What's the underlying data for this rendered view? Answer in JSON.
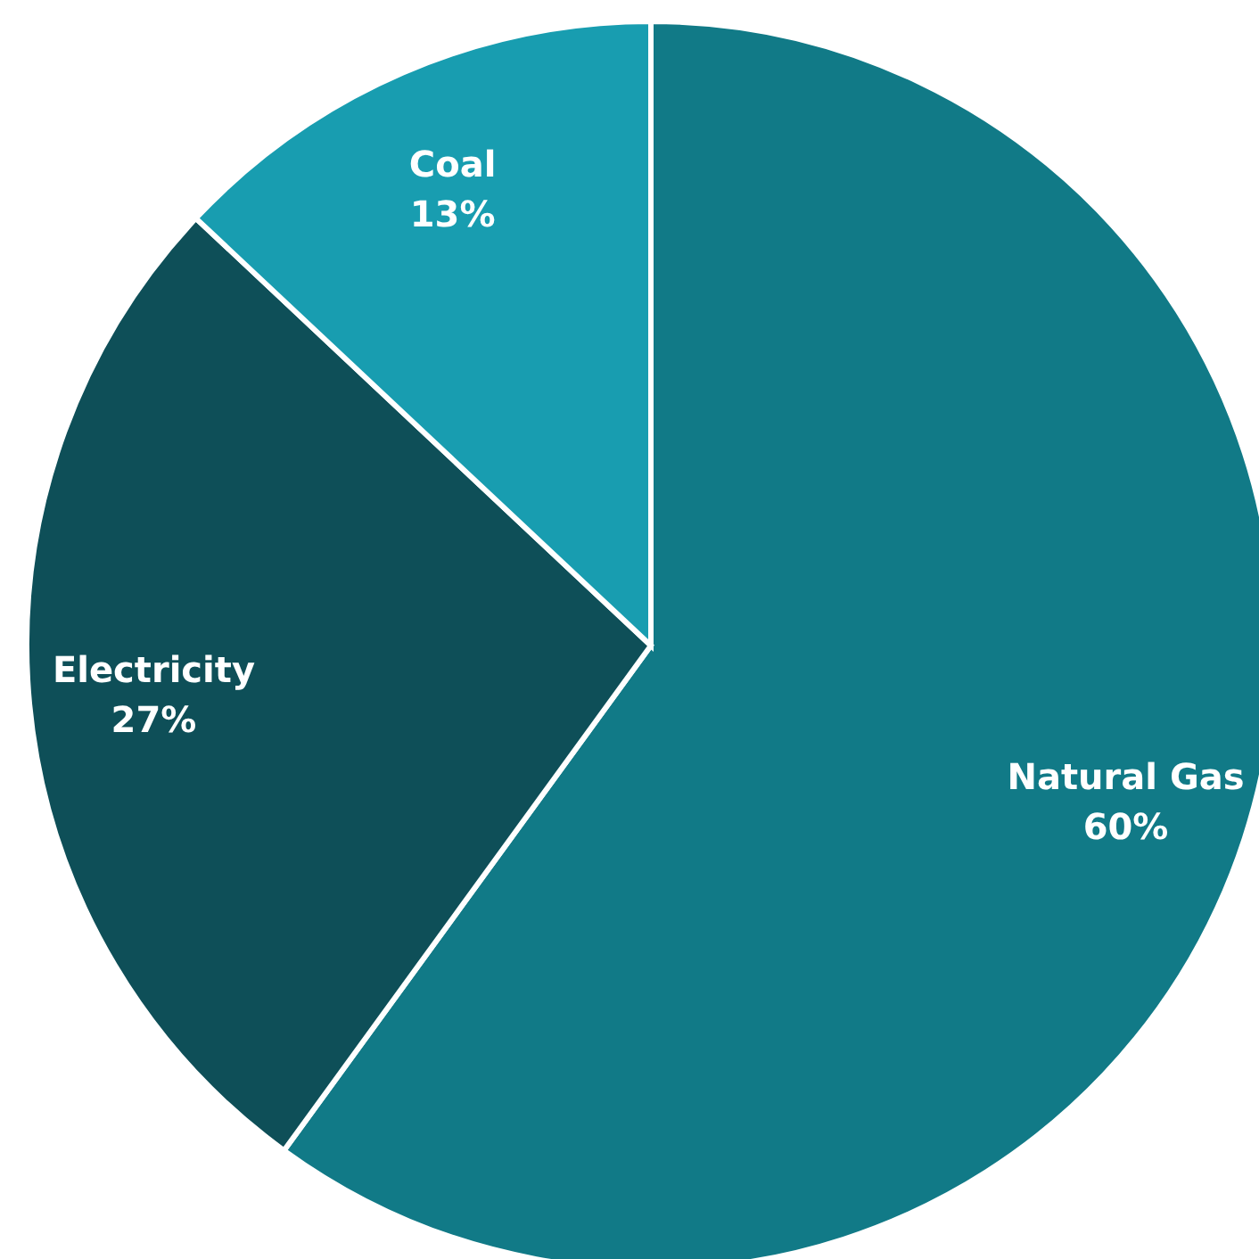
{
  "chart_data": {
    "type": "pie",
    "categories": [
      "Natural Gas",
      "Electricity",
      "Coal"
    ],
    "values": [
      60,
      27,
      13
    ],
    "colors": [
      "#117a87",
      "#0e4f58",
      "#189db0"
    ],
    "value_labels": [
      "60%",
      "27%",
      "13%"
    ],
    "legend": false
  }
}
